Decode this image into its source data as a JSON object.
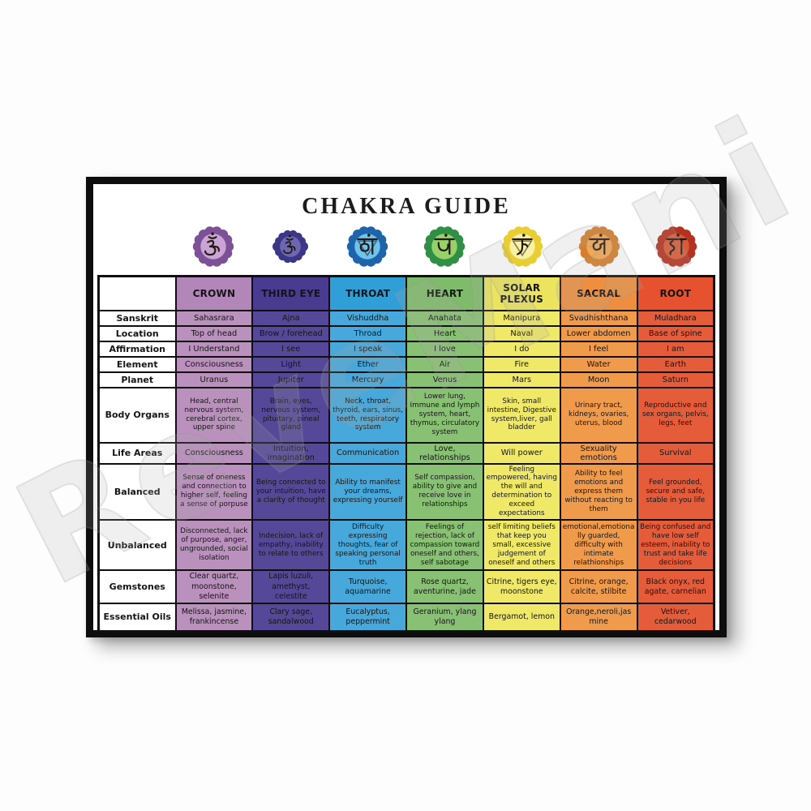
{
  "poster": {
    "title": "CHAKRA GUIDE",
    "watermark": "ReveMani",
    "frame_color": "#0d0d0d",
    "title_color": "#1c1c1c"
  },
  "table": {
    "row_labels": [
      "Sanskrit",
      "Location",
      "Affirmation",
      "Element",
      "Planet",
      "Body Organs",
      "Life Areas",
      "Balanced",
      "Unbalanced",
      "Gemstones",
      "Essential Oils"
    ],
    "columns": [
      {
        "label": "CROWN",
        "symbol": "om",
        "icon": "crown-chakra-om-icon",
        "colors": {
          "header": "#b286b8",
          "cell": "#ba90bd",
          "symbol_outer": "#7c5196",
          "symbol_inner": "#c9a4d4"
        },
        "cells": [
          "Sahasrara",
          "Top of head",
          "I Understand",
          "Consciousness",
          "Uranus",
          "Head, central nervous system, cerebral cortex, upper spine",
          "Consciousness",
          "Sense of oneness and connection to higher self, feeling a sense of porpuse",
          "Disconnected, lack of purpose, anger, ungrounded, social isolation",
          "Clear quartz, moonstone, selenite",
          "Melissa, jasmine, frankincense"
        ]
      },
      {
        "label": "THIRD EYE",
        "symbol": "om",
        "icon": "third-eye-chakra-om-icon",
        "colors": {
          "header": "#493c90",
          "cell": "#554898",
          "symbol_outer": "#3c3687",
          "symbol_inner": "#6d67b2"
        },
        "cells": [
          "Ajna",
          "Brow / forehead",
          "I see",
          "Light",
          "Jupiter",
          "Brain, eyes, nervous system, pituitary, pineal gland",
          "Intuition, imagination",
          "Being connected to your intuition, have a clarity of thought",
          "Indecision, lack of empathy, inability to relate to others",
          "Lapis luzuli, amethyst, celestite",
          "Clary sage, sandalwood"
        ]
      },
      {
        "label": "THROAT",
        "symbol": "ham",
        "icon": "throat-chakra-ham-icon",
        "colors": {
          "header": "#319fd7",
          "cell": "#46a8db",
          "symbol_outer": "#1e64ab",
          "symbol_inner": "#6fc4ec"
        },
        "cells": [
          "Vishuddha",
          "Throad",
          "I speak",
          "Ether",
          "Mercury",
          "Neck, throat, thyroid, ears, sinus, teeth, respiratory system",
          "Communication",
          "Ability to manifest your dreams, expressing yourself",
          "Difficulty expressing thoughts, fear of speaking personal truth",
          "Turquoise, aquamarine",
          "Eucalyptus, peppermint"
        ]
      },
      {
        "label": "HEART",
        "symbol": "yam",
        "icon": "heart-chakra-yam-icon",
        "colors": {
          "header": "#7fbb6b",
          "cell": "#88c173",
          "symbol_outer": "#2f8f44",
          "symbol_inner": "#98d06a"
        },
        "cells": [
          "Anahata",
          "Heart",
          "I love",
          "Air",
          "Venus",
          "Lower lung, Immune and lymph system, heart, thymus, circulatory system",
          "Love, relationships",
          "Self compassion, ability to give and receive love in relationships",
          "Feelings of rejection, lack of compassion toward oneself and others, self sabotage",
          "Rose quartz, aventurine, jade",
          "Geranium, ylang ylang"
        ]
      },
      {
        "label": "SOLAR PLEXUS",
        "symbol": "ram",
        "icon": "solar-plexus-chakra-ram-icon",
        "colors": {
          "header": "#ece45e",
          "cell": "#f0e968",
          "symbol_outer": "#e9cd35",
          "symbol_inner": "#f8f0a2"
        },
        "cells": [
          "Manipura",
          "Naval",
          "I do",
          "Fire",
          "Mars",
          "Skin, small intestine, Digestive system,liver, gall bladder",
          "Will power",
          "Feeling empowered, having the will and determination to exceed expectations",
          "self limiting beliefs that keep you small, excessive judgement of oneself and others",
          "Citrine, tigers eye, moonstone",
          "Bergamot, lemon"
        ]
      },
      {
        "label": "SACRAL",
        "symbol": "vam",
        "icon": "sacral-chakra-vam-icon",
        "colors": {
          "header": "#ee8f40",
          "cell": "#f09a4b",
          "symbol_outer": "#d67e2c",
          "symbol_inner": "#f3a855"
        },
        "cells": [
          "Svadhishthana",
          "Lower abdomen",
          "I feel",
          "Water",
          "Moon",
          "Urinary tract, kidneys, ovaries, uterus, blood",
          "Sexuality emotions",
          "Ability to feel emotions and express them without reacting to them",
          "emotional,emotionally guarded, difficulty with intimate relathionships",
          "Citrine, orange, calcite, stilbite",
          "Orange,neroli,jasmine"
        ]
      },
      {
        "label": "ROOT",
        "symbol": "lam",
        "icon": "root-chakra-lam-icon",
        "colors": {
          "header": "#e65130",
          "cell": "#e55c3b",
          "symbol_outer": "#b5321f",
          "symbol_inner": "#d95b38"
        },
        "cells": [
          "Muladhara",
          "Base of spine",
          "I am",
          "Earth",
          "Saturn",
          "Reproductive and sex organs, pelvis, legs, feet",
          "Survival",
          "Feel grounded, secure and safe, stable in you life",
          "Being confused and have low self esteem, inability to trust and take life decisions",
          "Black onyx, red agate, carnelian",
          "Vetiver, cedarwood"
        ]
      }
    ]
  }
}
